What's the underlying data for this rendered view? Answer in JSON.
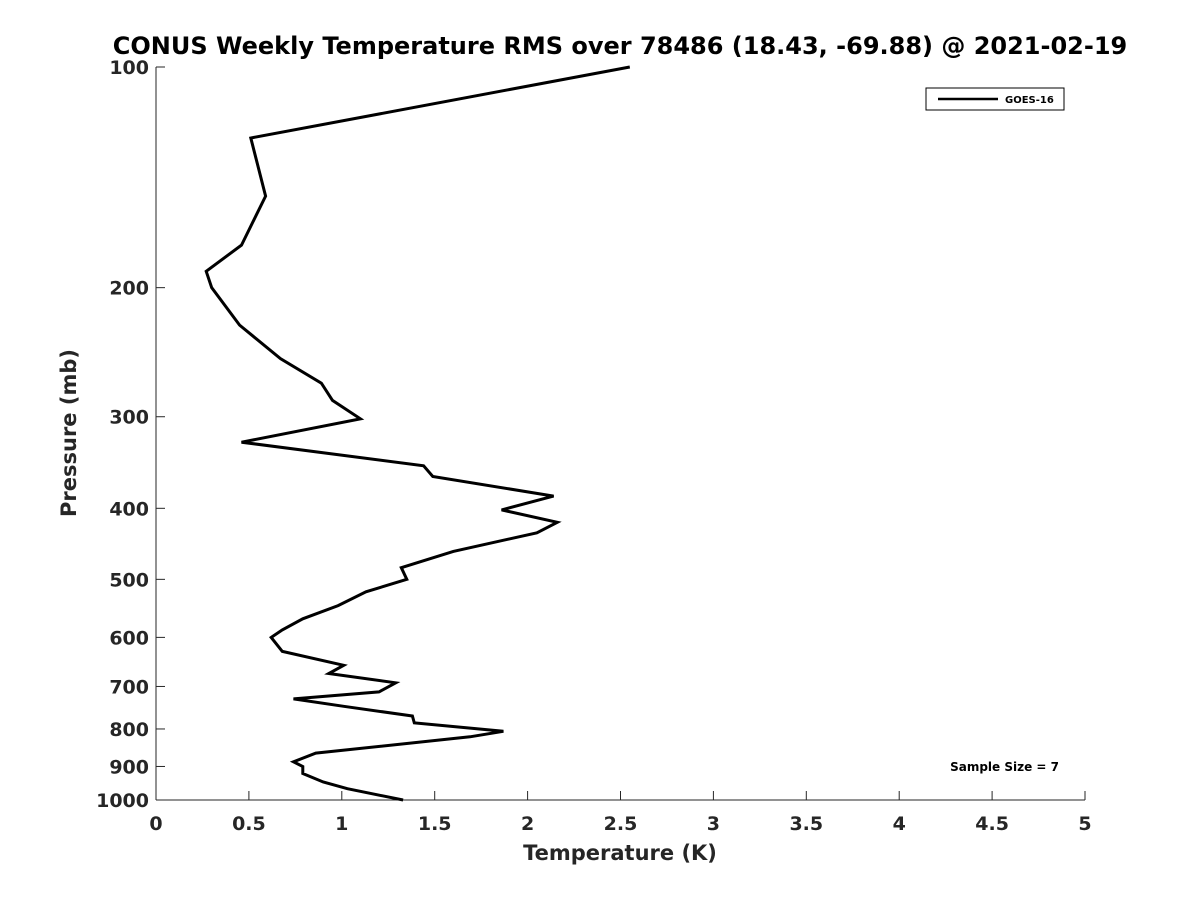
{
  "chart_data": {
    "type": "line",
    "title": "CONUS Weekly Temperature RMS over 78486 (18.43, -69.88) @ 2021-02-19",
    "xlabel": "Temperature (K)",
    "ylabel": "Pressure (mb)",
    "xlim": [
      0,
      5
    ],
    "ylim": [
      100,
      1000
    ],
    "y_scale": "log",
    "y_reversed": true,
    "x_ticks": [
      "0",
      "0.5",
      "1",
      "1.5",
      "2",
      "2.5",
      "3",
      "3.5",
      "4",
      "4.5",
      "5"
    ],
    "y_ticks": [
      "100",
      "200",
      "300",
      "400",
      "500",
      "600",
      "700",
      "800",
      "900",
      "1000"
    ],
    "grid": false,
    "legend_position": "top-right",
    "annotation": "Sample Size = 7",
    "series": [
      {
        "name": "GOES-16",
        "color": "#000000",
        "points": [
          [
            2.55,
            100
          ],
          [
            0.51,
            125
          ],
          [
            0.59,
            150
          ],
          [
            0.46,
            175
          ],
          [
            0.27,
            190
          ],
          [
            0.3,
            200
          ],
          [
            0.45,
            225
          ],
          [
            0.67,
            250
          ],
          [
            0.89,
            270
          ],
          [
            0.95,
            285
          ],
          [
            1.1,
            302
          ],
          [
            0.46,
            325
          ],
          [
            1.44,
            350
          ],
          [
            1.49,
            362
          ],
          [
            2.14,
            385
          ],
          [
            1.86,
            402
          ],
          [
            2.16,
            418
          ],
          [
            2.05,
            432
          ],
          [
            1.6,
            458
          ],
          [
            1.32,
            482
          ],
          [
            1.35,
            500
          ],
          [
            1.13,
            520
          ],
          [
            0.98,
            543
          ],
          [
            0.79,
            566
          ],
          [
            0.68,
            586
          ],
          [
            0.62,
            600
          ],
          [
            0.68,
            627
          ],
          [
            1.01,
            655
          ],
          [
            0.93,
            672
          ],
          [
            1.29,
            692
          ],
          [
            1.2,
            712
          ],
          [
            0.74,
            728
          ],
          [
            1.01,
            745
          ],
          [
            1.38,
            768
          ],
          [
            1.39,
            785
          ],
          [
            1.87,
            806
          ],
          [
            1.69,
            820
          ],
          [
            0.86,
            863
          ],
          [
            0.74,
            887
          ],
          [
            0.79,
            900
          ],
          [
            0.79,
            920
          ],
          [
            0.9,
            945
          ],
          [
            1.03,
            965
          ],
          [
            1.33,
            1000
          ]
        ]
      }
    ]
  }
}
